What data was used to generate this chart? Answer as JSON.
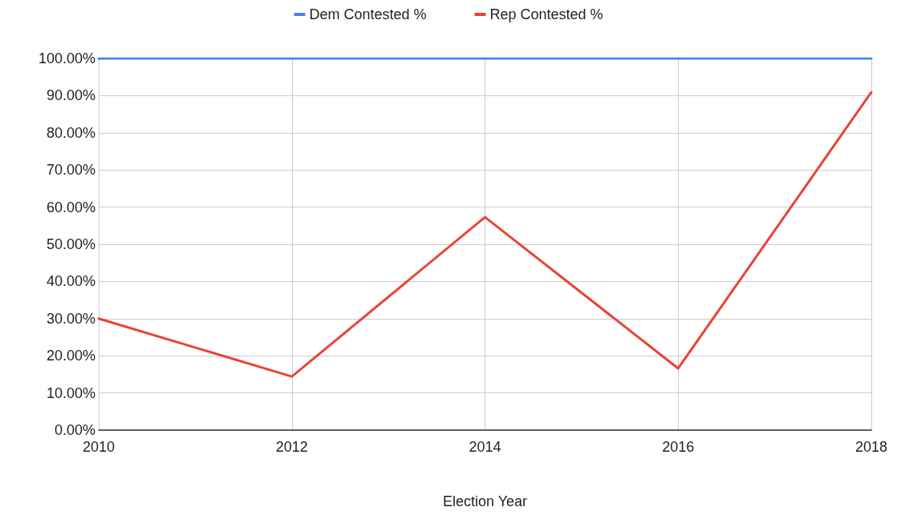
{
  "chart_data": {
    "type": "line",
    "xlabel": "Election Year",
    "x": [
      2010,
      2012,
      2014,
      2016,
      2018
    ],
    "series": [
      {
        "name": "Dem Contested %",
        "color": "#4285f4",
        "values": [
          100,
          100,
          100,
          100,
          100
        ]
      },
      {
        "name": "Rep Contested %",
        "color": "#ea4335",
        "values": [
          30,
          14.4,
          57.3,
          16.6,
          90.9
        ]
      }
    ],
    "xlim": [
      2010,
      2018
    ],
    "xticks": [
      2010,
      2012,
      2014,
      2016,
      2018
    ],
    "ylim": [
      0,
      100
    ],
    "yticks": [
      {
        "value": 0,
        "label": "0.00%"
      },
      {
        "value": 10,
        "label": "10.00%"
      },
      {
        "value": 20,
        "label": "20.00%"
      },
      {
        "value": 30,
        "label": "30.00%"
      },
      {
        "value": 40,
        "label": "40.00%"
      },
      {
        "value": 50,
        "label": "50.00%"
      },
      {
        "value": 60,
        "label": "60.00%"
      },
      {
        "value": 70,
        "label": "70.00%"
      },
      {
        "value": 80,
        "label": "80.00%"
      },
      {
        "value": 90,
        "label": "90.00%"
      },
      {
        "value": 100,
        "label": "100.00%"
      }
    ],
    "grid": true,
    "legend": "top",
    "marker": "none",
    "line_style": "solid"
  }
}
